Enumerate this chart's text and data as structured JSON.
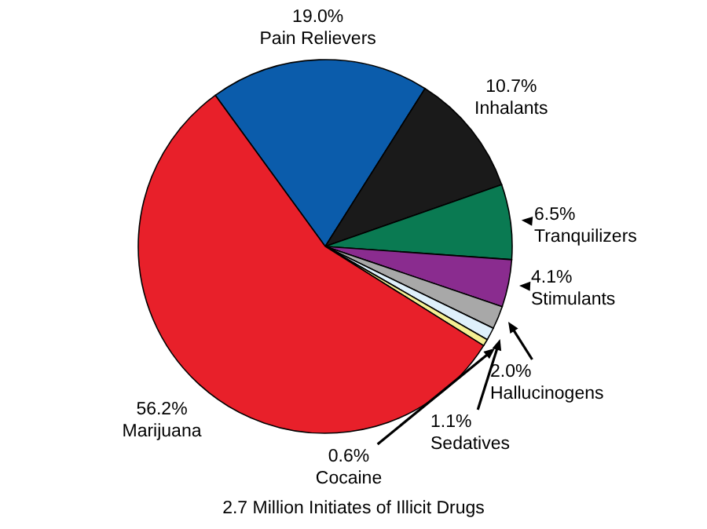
{
  "chart_data": {
    "type": "pie",
    "title": "2.7 Million Initiates of Illicit Drugs",
    "categories": [
      "Pain Relievers",
      "Inhalants",
      "Tranquilizers",
      "Stimulants",
      "Hallucinogens",
      "Sedatives",
      "Cocaine",
      "Marijuana"
    ],
    "values": [
      19.0,
      10.7,
      6.5,
      4.1,
      2.0,
      1.1,
      0.6,
      56.2
    ],
    "value_labels": [
      "19.0%",
      "10.7%",
      "6.5%",
      "4.1%",
      "2.0%",
      "1.1%",
      "0.6%",
      "56.2%"
    ],
    "colors": [
      "#0b5cab",
      "#1a1a1a",
      "#0a7a52",
      "#8a2c8f",
      "#a8a8a8",
      "#dff0fb",
      "#f5ef94",
      "#e8202a"
    ]
  }
}
